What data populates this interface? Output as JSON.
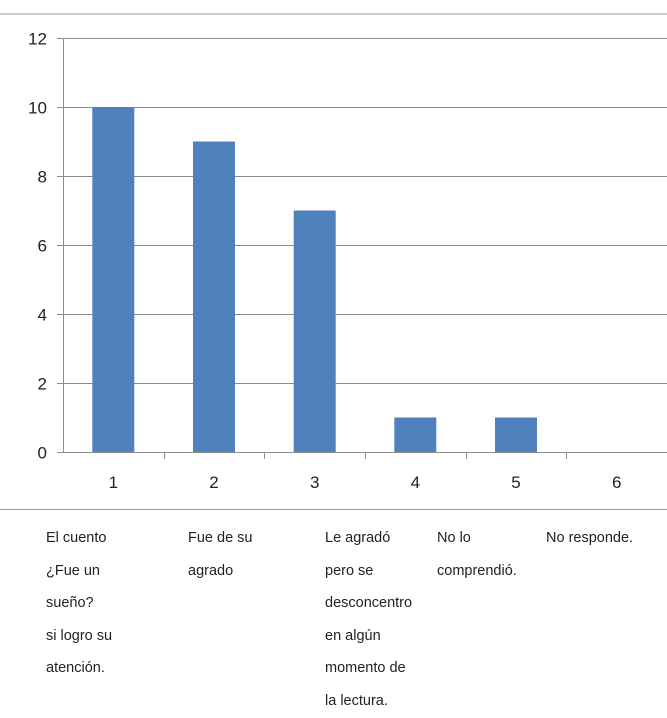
{
  "chart_data": {
    "type": "bar",
    "categories": [
      "1",
      "2",
      "3",
      "4",
      "5",
      "6"
    ],
    "values": [
      10,
      9,
      7,
      1,
      1,
      0
    ],
    "ylim": [
      0,
      12
    ],
    "yticks": [
      "0",
      "2",
      "4",
      "6",
      "8",
      "10",
      "12"
    ],
    "grid": true,
    "bar_color": "#4f81bd",
    "grid_color": "#8c8c8c"
  },
  "captions": [
    {
      "lines": [
        "El cuento",
        "¿Fue un",
        "sueño?",
        "si logro su",
        "atención."
      ]
    },
    {
      "lines": [
        "Fue de su",
        "agrado"
      ]
    },
    {
      "lines": [
        "Le agradó",
        "pero se",
        "desconcentro",
        "en algún",
        "momento de",
        "la lectura."
      ]
    },
    {
      "lines": [
        "No lo",
        "comprendió."
      ]
    },
    {
      "lines": [
        "No responde."
      ]
    }
  ]
}
